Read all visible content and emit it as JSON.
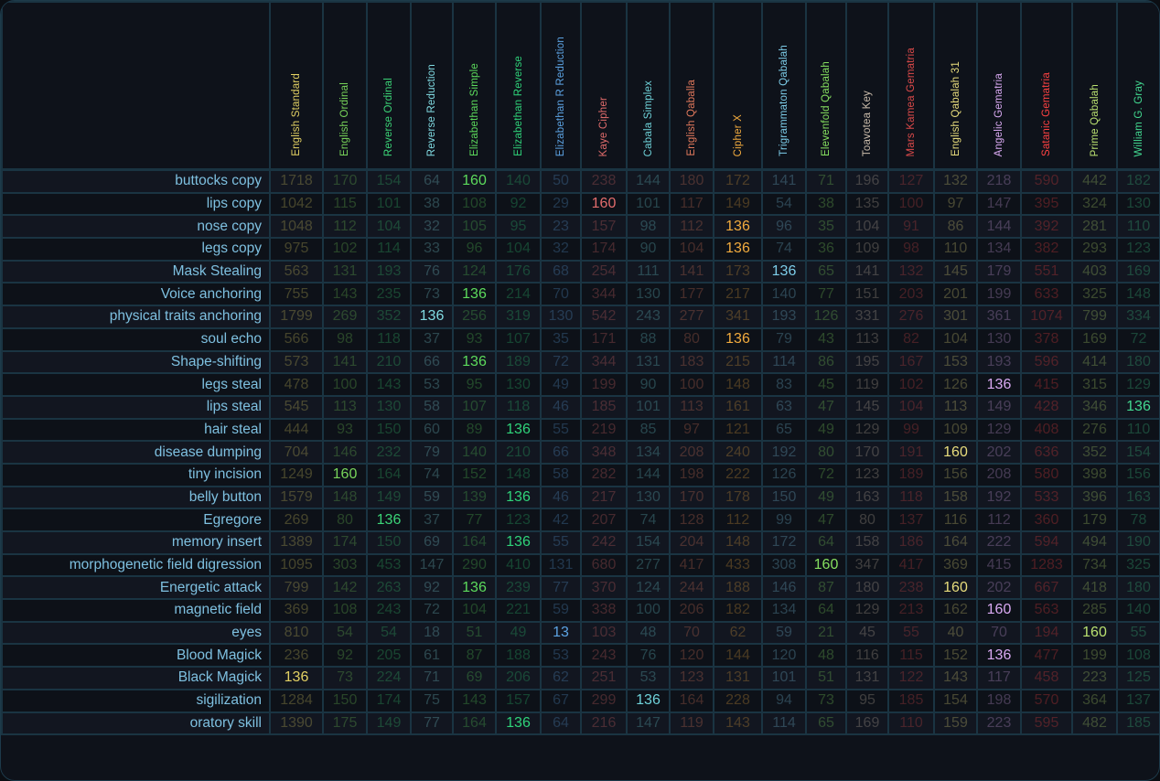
{
  "columns": [
    {
      "name": "English Standard",
      "color": "#e3d163"
    },
    {
      "name": "English Ordinal",
      "color": "#78d45a"
    },
    {
      "name": "Reverse Ordinal",
      "color": "#3bd477"
    },
    {
      "name": "Reverse Reduction",
      "color": "#80dbe2"
    },
    {
      "name": "Elizabethan Simple",
      "color": "#5cdb5c"
    },
    {
      "name": "Elizabethan Reverse",
      "color": "#2fd47a"
    },
    {
      "name": "Elizabethan R Reduction",
      "color": "#5ca3e3"
    },
    {
      "name": "Kaye Cipher",
      "color": "#e26c6c"
    },
    {
      "name": "Cabala Simplex",
      "color": "#6fd3da"
    },
    {
      "name": "English Qaballa",
      "color": "#e2795c"
    },
    {
      "name": "Cipher X",
      "color": "#f2ab3e"
    },
    {
      "name": "Trigrammaton Qabalah",
      "color": "#7dcde9"
    },
    {
      "name": "Elevenfold Qabalah",
      "color": "#86e060"
    },
    {
      "name": "Toavotea Key",
      "color": "#cbbcab"
    },
    {
      "name": "Mars Kamea Gematria",
      "color": "#dc4a4a"
    },
    {
      "name": "English Qabalah 31",
      "color": "#e8dc7c"
    },
    {
      "name": "Angelic Gematria",
      "color": "#d9a9f2"
    },
    {
      "name": "Satanic Gematria",
      "color": "#ff4242"
    },
    {
      "name": "Prime Qabalah",
      "color": "#b9e070"
    },
    {
      "name": "William G. Gray",
      "color": "#42d890"
    }
  ],
  "rows": [
    {
      "label": "buttocks copy",
      "values": [
        1718,
        170,
        154,
        64,
        160,
        140,
        50,
        238,
        144,
        180,
        172,
        141,
        71,
        196,
        127,
        132,
        218,
        590,
        442,
        182
      ],
      "highlight": [
        4
      ]
    },
    {
      "label": "lips copy",
      "values": [
        1042,
        115,
        101,
        38,
        108,
        92,
        29,
        160,
        101,
        117,
        149,
        54,
        38,
        135,
        100,
        97,
        147,
        395,
        324,
        130
      ],
      "highlight": [
        7
      ]
    },
    {
      "label": "nose copy",
      "values": [
        1048,
        112,
        104,
        32,
        105,
        95,
        23,
        157,
        98,
        112,
        136,
        96,
        35,
        104,
        91,
        86,
        144,
        392,
        281,
        110
      ],
      "highlight": [
        10
      ]
    },
    {
      "label": "legs copy",
      "values": [
        975,
        102,
        114,
        33,
        96,
        104,
        32,
        174,
        90,
        104,
        136,
        74,
        36,
        109,
        98,
        110,
        134,
        382,
        293,
        123
      ],
      "highlight": [
        10
      ]
    },
    {
      "label": "Mask Stealing",
      "values": [
        563,
        131,
        193,
        76,
        124,
        176,
        68,
        254,
        111,
        141,
        173,
        136,
        65,
        141,
        132,
        145,
        179,
        551,
        403,
        169
      ],
      "highlight": [
        11
      ]
    },
    {
      "label": "Voice anchoring",
      "values": [
        755,
        143,
        235,
        73,
        136,
        214,
        70,
        344,
        130,
        177,
        217,
        140,
        77,
        151,
        203,
        201,
        199,
        633,
        325,
        148
      ],
      "highlight": [
        4
      ]
    },
    {
      "label": "physical traits anchoring",
      "values": [
        1799,
        269,
        352,
        136,
        256,
        319,
        130,
        542,
        243,
        277,
        341,
        193,
        126,
        331,
        276,
        301,
        361,
        1074,
        799,
        334
      ],
      "highlight": [
        3
      ]
    },
    {
      "label": "soul echo",
      "values": [
        566,
        98,
        118,
        37,
        93,
        107,
        35,
        171,
        88,
        80,
        136,
        79,
        43,
        113,
        82,
        104,
        130,
        378,
        169,
        72
      ],
      "highlight": [
        10
      ]
    },
    {
      "label": "Shape-shifting",
      "values": [
        573,
        141,
        210,
        66,
        136,
        189,
        72,
        344,
        131,
        183,
        215,
        114,
        86,
        195,
        167,
        153,
        193,
        596,
        414,
        180
      ],
      "highlight": [
        4
      ]
    },
    {
      "label": "legs steal",
      "values": [
        478,
        100,
        143,
        53,
        95,
        130,
        49,
        199,
        90,
        100,
        148,
        83,
        45,
        119,
        102,
        126,
        136,
        415,
        315,
        129
      ],
      "highlight": [
        16
      ]
    },
    {
      "label": "lips steal",
      "values": [
        545,
        113,
        130,
        58,
        107,
        118,
        46,
        185,
        101,
        113,
        161,
        63,
        47,
        145,
        104,
        113,
        149,
        428,
        346,
        136
      ],
      "highlight": [
        19
      ]
    },
    {
      "label": "hair steal",
      "values": [
        444,
        93,
        150,
        60,
        89,
        136,
        55,
        219,
        85,
        97,
        121,
        65,
        49,
        129,
        99,
        109,
        129,
        408,
        276,
        110
      ],
      "highlight": [
        5
      ]
    },
    {
      "label": "disease dumping",
      "values": [
        704,
        146,
        232,
        79,
        140,
        210,
        66,
        348,
        134,
        208,
        240,
        192,
        80,
        170,
        191,
        160,
        202,
        636,
        352,
        154
      ],
      "highlight": [
        15
      ]
    },
    {
      "label": "tiny incision",
      "values": [
        1249,
        160,
        164,
        74,
        152,
        148,
        58,
        282,
        144,
        198,
        222,
        126,
        72,
        123,
        189,
        156,
        208,
        580,
        398,
        156
      ],
      "highlight": [
        1
      ]
    },
    {
      "label": "belly button",
      "values": [
        1579,
        148,
        149,
        59,
        139,
        136,
        46,
        217,
        130,
        170,
        178,
        150,
        49,
        163,
        118,
        158,
        192,
        533,
        396,
        163
      ],
      "highlight": [
        5
      ]
    },
    {
      "label": "Egregore",
      "values": [
        269,
        80,
        136,
        37,
        77,
        123,
        42,
        207,
        74,
        128,
        112,
        99,
        47,
        80,
        137,
        116,
        112,
        360,
        179,
        78
      ],
      "highlight": [
        2
      ]
    },
    {
      "label": "memory insert",
      "values": [
        1389,
        174,
        150,
        69,
        164,
        136,
        55,
        242,
        154,
        204,
        148,
        172,
        64,
        158,
        186,
        164,
        222,
        594,
        494,
        190
      ],
      "highlight": [
        5
      ]
    },
    {
      "label": "morphogenetic field digression",
      "values": [
        1095,
        303,
        453,
        147,
        290,
        410,
        131,
        680,
        277,
        417,
        433,
        308,
        160,
        347,
        417,
        369,
        415,
        1283,
        734,
        325
      ],
      "highlight": [
        12
      ]
    },
    {
      "label": "Energetic attack",
      "values": [
        799,
        142,
        263,
        92,
        136,
        239,
        77,
        370,
        124,
        244,
        188,
        146,
        87,
        180,
        238,
        160,
        202,
        667,
        418,
        180
      ],
      "highlight": [
        4,
        15
      ]
    },
    {
      "label": "magnetic field",
      "values": [
        369,
        108,
        243,
        72,
        104,
        221,
        59,
        338,
        100,
        206,
        182,
        134,
        64,
        129,
        213,
        162,
        160,
        563,
        285,
        140
      ],
      "highlight": [
        16
      ]
    },
    {
      "label": "eyes",
      "values": [
        810,
        54,
        54,
        18,
        51,
        49,
        13,
        103,
        48,
        70,
        62,
        59,
        21,
        45,
        55,
        40,
        70,
        194,
        160,
        55
      ],
      "highlight": [
        6,
        18
      ]
    },
    {
      "label": "Blood Magick",
      "values": [
        236,
        92,
        205,
        61,
        87,
        188,
        53,
        243,
        76,
        120,
        144,
        120,
        48,
        116,
        115,
        152,
        136,
        477,
        199,
        108
      ],
      "highlight": [
        16
      ]
    },
    {
      "label": "Black Magick",
      "values": [
        136,
        73,
        224,
        71,
        69,
        206,
        62,
        251,
        53,
        123,
        131,
        101,
        51,
        131,
        122,
        143,
        117,
        458,
        223,
        125
      ],
      "highlight": [
        0
      ]
    },
    {
      "label": "sigilization",
      "values": [
        1284,
        150,
        174,
        75,
        143,
        157,
        67,
        299,
        136,
        164,
        228,
        94,
        73,
        95,
        185,
        154,
        198,
        570,
        364,
        137
      ],
      "highlight": [
        8
      ]
    },
    {
      "label": "oratory skill",
      "values": [
        1390,
        175,
        149,
        77,
        164,
        136,
        64,
        216,
        147,
        119,
        143,
        114,
        65,
        169,
        110,
        159,
        223,
        595,
        482,
        185
      ],
      "highlight": [
        5
      ]
    }
  ]
}
